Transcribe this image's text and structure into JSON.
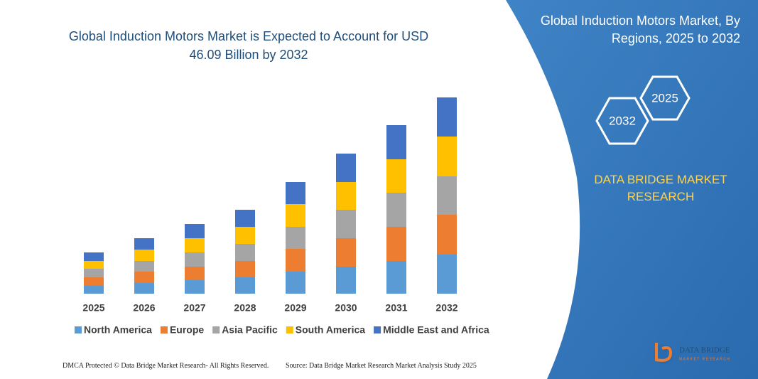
{
  "chart_data": {
    "type": "bar",
    "stacked": true,
    "title": "Global Induction Motors Market is Expected to Account for USD 46.09 Billion by 2032",
    "categories": [
      "2025",
      "2026",
      "2027",
      "2028",
      "2029",
      "2030",
      "2031",
      "2032"
    ],
    "series": [
      {
        "name": "North America",
        "color": "#5b9bd5",
        "values": [
          11,
          15,
          19,
          23,
          31,
          38,
          46,
          55
        ]
      },
      {
        "name": "Europe",
        "color": "#ed7d31",
        "values": [
          12,
          16,
          19,
          23,
          32,
          40,
          48,
          56
        ]
      },
      {
        "name": "Asia Pacific",
        "color": "#a5a5a5",
        "values": [
          12,
          15,
          20,
          24,
          31,
          40,
          48,
          54
        ]
      },
      {
        "name": "South America",
        "color": "#ffc000",
        "values": [
          11,
          16,
          20,
          24,
          32,
          39,
          47,
          56
        ]
      },
      {
        "name": "Middle East and Africa",
        "color": "#4472c4",
        "values": [
          12,
          16,
          20,
          24,
          31,
          40,
          48,
          55
        ]
      }
    ],
    "ylim": [
      0,
      300
    ],
    "grid": false,
    "legend": "bottom"
  },
  "panel": {
    "title": "Global Induction Motors Market, By Regions, 2025 to 2032",
    "hex_labels": [
      "2025",
      "2032"
    ],
    "brand": "DATA BRIDGE MARKET RESEARCH"
  },
  "footer": {
    "left": "DMCA Protected © Data Bridge Market Research- All Rights Reserved.",
    "right": "Source: Data Bridge Market Research Market Analysis Study 2025",
    "logo": "DATA BRIDGE",
    "logo_sub": "MARKET RESEARCH"
  }
}
